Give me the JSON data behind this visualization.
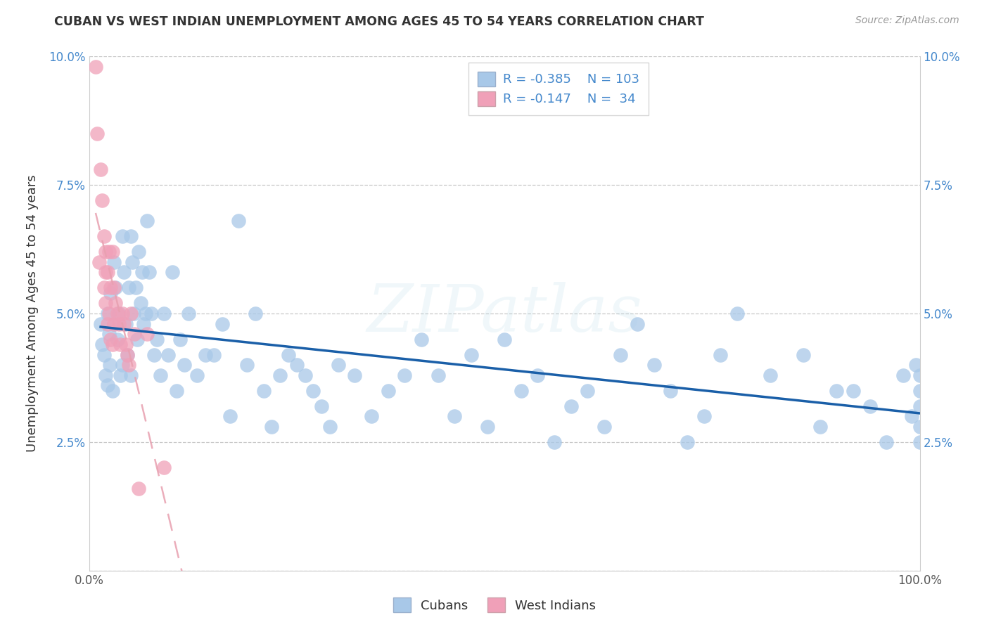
{
  "title": "CUBAN VS WEST INDIAN UNEMPLOYMENT AMONG AGES 45 TO 54 YEARS CORRELATION CHART",
  "source": "Source: ZipAtlas.com",
  "ylabel": "Unemployment Among Ages 45 to 54 years",
  "xlim": [
    0,
    1.0
  ],
  "ylim": [
    0,
    0.1
  ],
  "yticks": [
    0.0,
    0.025,
    0.05,
    0.075,
    0.1
  ],
  "ytick_labels": [
    "",
    "2.5%",
    "5.0%",
    "7.5%",
    "10.0%"
  ],
  "xtick_labels": [
    "0.0%",
    "",
    "",
    "",
    "",
    "",
    "",
    "",
    "",
    "",
    "100.0%"
  ],
  "cubans_R": "-0.385",
  "cubans_N": "103",
  "west_indians_R": "-0.147",
  "west_indians_N": "34",
  "cubans_color": "#a8c8e8",
  "cubans_line_color": "#1a5fa8",
  "west_indians_color": "#f0a0b8",
  "west_indians_line_color": "#e06080",
  "west_indians_trendline_color": "#e8a0b0",
  "background_color": "#ffffff",
  "grid_color": "#c8c8c8",
  "watermark": "ZIPatlas",
  "legend_color": "#4488cc",
  "axis_tick_color": "#4488cc",
  "cubans_x": [
    0.014,
    0.016,
    0.018,
    0.02,
    0.022,
    0.022,
    0.024,
    0.025,
    0.026,
    0.028,
    0.03,
    0.03,
    0.032,
    0.034,
    0.036,
    0.038,
    0.04,
    0.04,
    0.042,
    0.044,
    0.046,
    0.048,
    0.05,
    0.05,
    0.052,
    0.054,
    0.056,
    0.058,
    0.06,
    0.062,
    0.064,
    0.066,
    0.068,
    0.07,
    0.072,
    0.075,
    0.078,
    0.082,
    0.086,
    0.09,
    0.095,
    0.1,
    0.105,
    0.11,
    0.115,
    0.12,
    0.13,
    0.14,
    0.15,
    0.16,
    0.17,
    0.18,
    0.19,
    0.2,
    0.21,
    0.22,
    0.23,
    0.24,
    0.25,
    0.26,
    0.27,
    0.28,
    0.29,
    0.3,
    0.32,
    0.34,
    0.36,
    0.38,
    0.4,
    0.42,
    0.44,
    0.46,
    0.48,
    0.5,
    0.52,
    0.54,
    0.56,
    0.58,
    0.6,
    0.62,
    0.64,
    0.66,
    0.68,
    0.7,
    0.72,
    0.74,
    0.76,
    0.78,
    0.82,
    0.86,
    0.88,
    0.9,
    0.92,
    0.94,
    0.96,
    0.98,
    0.99,
    0.995,
    1.0,
    1.0,
    1.0,
    1.0,
    1.0
  ],
  "cubans_y": [
    0.048,
    0.044,
    0.042,
    0.038,
    0.05,
    0.036,
    0.046,
    0.04,
    0.054,
    0.035,
    0.06,
    0.048,
    0.055,
    0.045,
    0.05,
    0.038,
    0.065,
    0.04,
    0.058,
    0.048,
    0.042,
    0.055,
    0.065,
    0.038,
    0.06,
    0.05,
    0.055,
    0.045,
    0.062,
    0.052,
    0.058,
    0.048,
    0.05,
    0.068,
    0.058,
    0.05,
    0.042,
    0.045,
    0.038,
    0.05,
    0.042,
    0.058,
    0.035,
    0.045,
    0.04,
    0.05,
    0.038,
    0.042,
    0.042,
    0.048,
    0.03,
    0.068,
    0.04,
    0.05,
    0.035,
    0.028,
    0.038,
    0.042,
    0.04,
    0.038,
    0.035,
    0.032,
    0.028,
    0.04,
    0.038,
    0.03,
    0.035,
    0.038,
    0.045,
    0.038,
    0.03,
    0.042,
    0.028,
    0.045,
    0.035,
    0.038,
    0.025,
    0.032,
    0.035,
    0.028,
    0.042,
    0.048,
    0.04,
    0.035,
    0.025,
    0.03,
    0.042,
    0.05,
    0.038,
    0.042,
    0.028,
    0.035,
    0.035,
    0.032,
    0.025,
    0.038,
    0.03,
    0.04,
    0.035,
    0.032,
    0.025,
    0.038,
    0.028
  ],
  "west_indians_x": [
    0.008,
    0.01,
    0.012,
    0.014,
    0.016,
    0.018,
    0.018,
    0.02,
    0.02,
    0.02,
    0.022,
    0.022,
    0.024,
    0.024,
    0.026,
    0.026,
    0.028,
    0.028,
    0.03,
    0.03,
    0.032,
    0.034,
    0.036,
    0.038,
    0.04,
    0.042,
    0.044,
    0.046,
    0.048,
    0.05,
    0.055,
    0.06,
    0.07,
    0.09
  ],
  "west_indians_y": [
    0.098,
    0.085,
    0.06,
    0.078,
    0.072,
    0.065,
    0.055,
    0.062,
    0.058,
    0.052,
    0.058,
    0.048,
    0.062,
    0.05,
    0.055,
    0.045,
    0.062,
    0.044,
    0.055,
    0.048,
    0.052,
    0.05,
    0.048,
    0.044,
    0.05,
    0.048,
    0.044,
    0.042,
    0.04,
    0.05,
    0.046,
    0.016,
    0.046,
    0.02
  ]
}
